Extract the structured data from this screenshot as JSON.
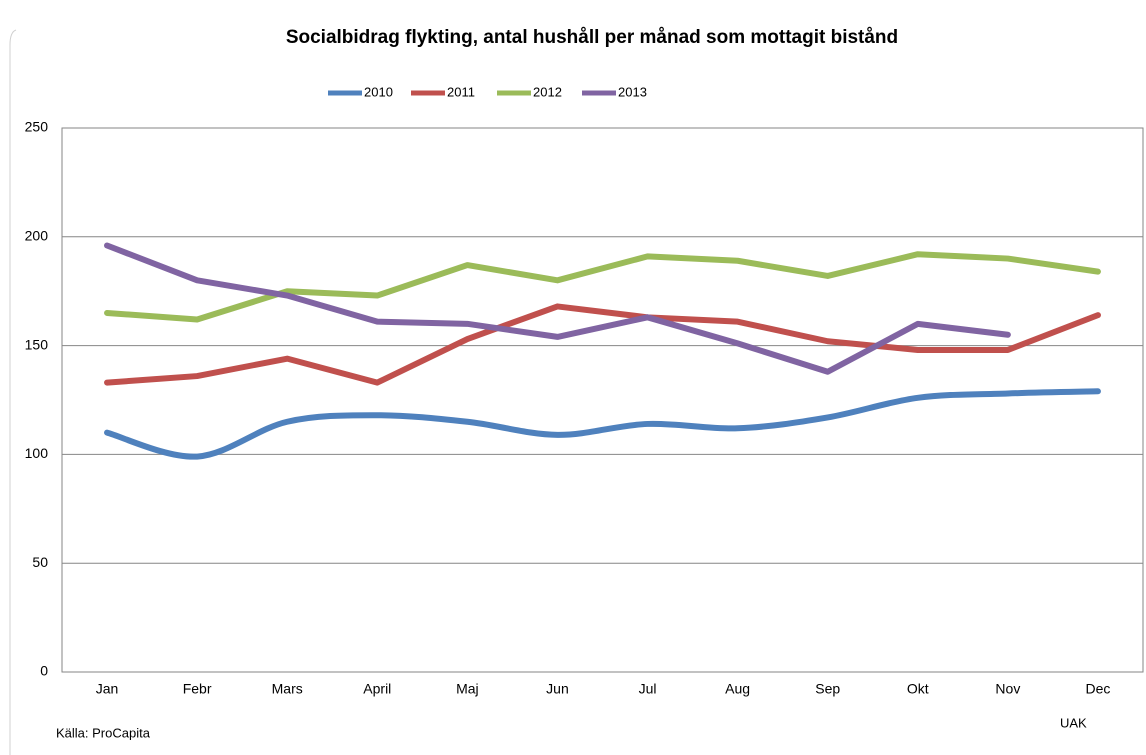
{
  "chart_data": {
    "type": "line",
    "title": "Socialbidrag flykting, antal hushåll per månad som mottagit bistånd",
    "categories": [
      "Jan",
      "Febr",
      "Mars",
      "April",
      "Maj",
      "Jun",
      "Jul",
      "Aug",
      "Sep",
      "Okt",
      "Nov",
      "Dec"
    ],
    "series": [
      {
        "name": "2010",
        "color": "#4f81bd",
        "smooth": true,
        "values": [
          110,
          99,
          115,
          118,
          115,
          109,
          114,
          112,
          117,
          126,
          128,
          129
        ]
      },
      {
        "name": "2011",
        "color": "#c0504d",
        "values": [
          133,
          136,
          144,
          133,
          153,
          168,
          163,
          161,
          152,
          148,
          148,
          164
        ]
      },
      {
        "name": "2012",
        "color": "#9bbb59",
        "values": [
          165,
          162,
          175,
          173,
          187,
          180,
          191,
          189,
          182,
          192,
          190,
          184
        ]
      },
      {
        "name": "2013",
        "color": "#8064a2",
        "values": [
          196,
          180,
          173,
          161,
          160,
          154,
          163,
          151,
          138,
          160,
          155,
          null
        ]
      }
    ],
    "ylim": [
      0,
      250
    ],
    "yticks": [
      0,
      50,
      100,
      150,
      200,
      250
    ],
    "grid": true,
    "legend": "top",
    "source": "Källa: ProCapita",
    "credit": "UAK"
  }
}
